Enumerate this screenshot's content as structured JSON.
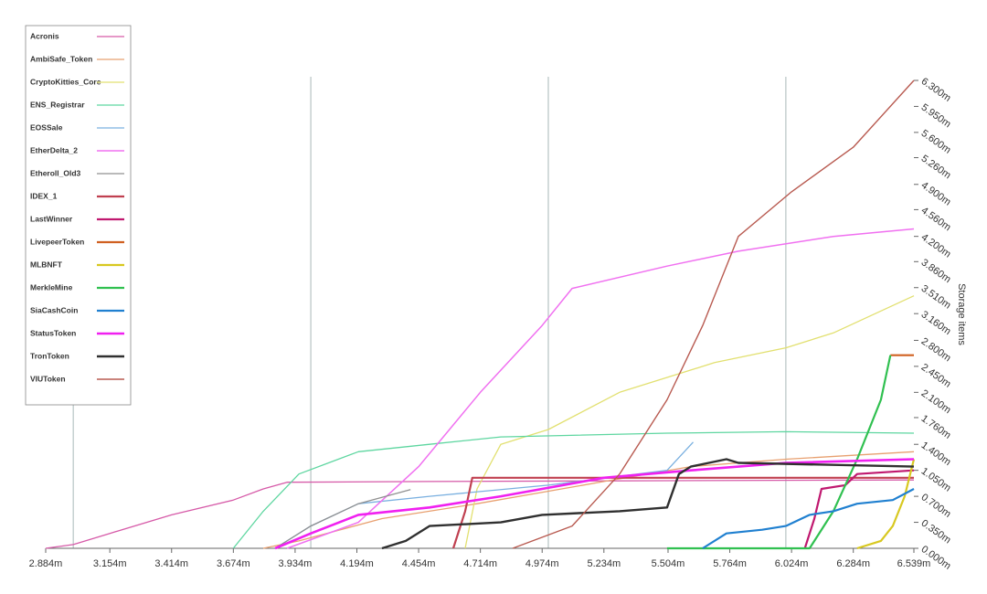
{
  "chart_data": {
    "type": "line",
    "y_axis_label": "Storage items",
    "xlim": [
      2.884,
      6.539
    ],
    "xticks": [
      {
        "value": 2.884,
        "label": "2.884m"
      },
      {
        "value": 3.154,
        "label": "3.154m"
      },
      {
        "value": 3.414,
        "label": "3.414m"
      },
      {
        "value": 3.674,
        "label": "3.674m"
      },
      {
        "value": 3.934,
        "label": "3.934m"
      },
      {
        "value": 4.194,
        "label": "4.194m"
      },
      {
        "value": 4.454,
        "label": "4.454m"
      },
      {
        "value": 4.714,
        "label": "4.714m"
      },
      {
        "value": 4.974,
        "label": "4.974m"
      },
      {
        "value": 5.234,
        "label": "5.234m"
      },
      {
        "value": 5.504,
        "label": "5.504m"
      },
      {
        "value": 5.764,
        "label": "5.764m"
      },
      {
        "value": 6.024,
        "label": "6.024m"
      },
      {
        "value": 6.284,
        "label": "6.284m"
      },
      {
        "value": 6.539,
        "label": "6.539m"
      }
    ],
    "x_gridlines": [
      3,
      4,
      5,
      6
    ],
    "ylim": [
      0,
      6.3
    ],
    "yticks": [
      {
        "value": 0,
        "label": "0.000m"
      },
      {
        "value": 0.35,
        "label": "0.350m"
      },
      {
        "value": 0.7,
        "label": "0.700m"
      },
      {
        "value": 1.05,
        "label": "1.050m"
      },
      {
        "value": 1.4,
        "label": "1.400m"
      },
      {
        "value": 1.76,
        "label": "1.760m"
      },
      {
        "value": 2.1,
        "label": "2.100m"
      },
      {
        "value": 2.45,
        "label": "2.450m"
      },
      {
        "value": 2.8,
        "label": "2.800m"
      },
      {
        "value": 3.16,
        "label": "3.160m"
      },
      {
        "value": 3.51,
        "label": "3.510m"
      },
      {
        "value": 3.86,
        "label": "3.860m"
      },
      {
        "value": 4.2,
        "label": "4.200m"
      },
      {
        "value": 4.56,
        "label": "4.560m"
      },
      {
        "value": 4.9,
        "label": "4.900m"
      },
      {
        "value": 5.26,
        "label": "5.260m"
      },
      {
        "value": 5.6,
        "label": "5.600m"
      },
      {
        "value": 5.95,
        "label": "5.950m"
      },
      {
        "value": 6.3,
        "label": "6.300m"
      }
    ],
    "series": [
      {
        "name": "Acronis",
        "color": "#d65aa8",
        "width": 1.3,
        "x": [
          2.884,
          3.0,
          3.154,
          3.414,
          3.674,
          3.8,
          3.9,
          4.5,
          5.5,
          6.539
        ],
        "values": [
          0,
          0.05,
          0.2,
          0.45,
          0.65,
          0.8,
          0.89,
          0.9,
          0.91,
          0.92
        ]
      },
      {
        "name": "AmbiSafe_Token",
        "color": "#e8a070",
        "width": 1.3,
        "x": [
          3.8,
          3.95,
          4.3,
          4.7,
          5.234,
          5.6,
          6.0,
          6.539
        ],
        "values": [
          0,
          0.1,
          0.4,
          0.6,
          0.9,
          1.1,
          1.2,
          1.3
        ]
      },
      {
        "name": "CryptoKitties_Core",
        "color": "#e2e070",
        "width": 1.3,
        "x": [
          4.65,
          4.7,
          4.8,
          5.0,
          5.3,
          5.7,
          6.0,
          6.2,
          6.539
        ],
        "values": [
          0,
          0.8,
          1.4,
          1.6,
          2.1,
          2.5,
          2.7,
          2.9,
          3.4
        ]
      },
      {
        "name": "ENS_Registrar",
        "color": "#5ed6a0",
        "width": 1.3,
        "x": [
          3.674,
          3.8,
          3.95,
          4.2,
          4.5,
          4.8,
          5.5,
          6.0,
          6.539
        ],
        "values": [
          0,
          0.5,
          1.0,
          1.3,
          1.4,
          1.5,
          1.55,
          1.57,
          1.55
        ]
      },
      {
        "name": "EOSSale",
        "color": "#7ab0e0",
        "width": 1.3,
        "x": [
          3.85,
          4.0,
          4.2,
          4.5,
          5.0,
          5.5,
          5.61
        ],
        "values": [
          0,
          0.3,
          0.6,
          0.7,
          0.85,
          1.05,
          1.43
        ]
      },
      {
        "name": "EtherDelta_2",
        "color": "#f070f0",
        "width": 1.5,
        "x": [
          3.9,
          4.2,
          4.454,
          4.714,
          4.974,
          5.1,
          5.5,
          5.8,
          6.2,
          6.539
        ],
        "values": [
          0,
          0.35,
          1.1,
          2.1,
          3.0,
          3.5,
          3.8,
          4.0,
          4.2,
          4.3
        ]
      },
      {
        "name": "Etheroll_Old3",
        "color": "#909090",
        "width": 1.3,
        "x": [
          3.85,
          4.0,
          4.2,
          4.42
        ],
        "values": [
          0,
          0.3,
          0.6,
          0.79
        ]
      },
      {
        "name": "IDEX_1",
        "color": "#c04050",
        "width": 2.2,
        "x": [
          4.6,
          4.65,
          4.68,
          6.539
        ],
        "values": [
          0,
          0.5,
          0.95,
          0.95
        ]
      },
      {
        "name": "LastWinner",
        "color": "#c0186f",
        "width": 2.2,
        "x": [
          6.08,
          6.12,
          6.15,
          6.25,
          6.3,
          6.539
        ],
        "values": [
          0,
          0.4,
          0.8,
          0.85,
          1.0,
          1.05
        ]
      },
      {
        "name": "LivepeerToken",
        "color": "#d06020",
        "width": 2.2,
        "x": [
          6.44,
          6.539
        ],
        "values": [
          2.6,
          2.6
        ]
      },
      {
        "name": "MLBNFT",
        "color": "#d8c820",
        "width": 2.2,
        "x": [
          6.3,
          6.4,
          6.45,
          6.5,
          6.539
        ],
        "values": [
          0,
          0.1,
          0.3,
          0.7,
          1.2
        ]
      },
      {
        "name": "MerkleMine",
        "color": "#30c050",
        "width": 2.2,
        "x": [
          5.5,
          6.1,
          6.2,
          6.3,
          6.4,
          6.44
        ],
        "values": [
          0,
          0,
          0.5,
          1.2,
          2.0,
          2.6
        ]
      },
      {
        "name": "SiaCashCoin",
        "color": "#2080d0",
        "width": 2.2,
        "x": [
          5.65,
          5.75,
          5.9,
          6.0,
          6.1,
          6.2,
          6.3,
          6.45,
          6.539
        ],
        "values": [
          0,
          0.2,
          0.25,
          0.3,
          0.45,
          0.5,
          0.6,
          0.65,
          0.8
        ]
      },
      {
        "name": "StatusToken",
        "color": "#f020f0",
        "width": 2.6,
        "x": [
          3.85,
          4.0,
          4.2,
          4.5,
          4.8,
          5.234,
          5.6,
          6.0,
          6.539
        ],
        "values": [
          0,
          0.2,
          0.45,
          0.55,
          0.7,
          0.95,
          1.05,
          1.15,
          1.2
        ]
      },
      {
        "name": "TronToken",
        "color": "#303030",
        "width": 2.4,
        "x": [
          4.3,
          4.4,
          4.5,
          4.8,
          4.974,
          5.3,
          5.5,
          5.55,
          5.6,
          5.75,
          5.8,
          6.539
        ],
        "values": [
          0,
          0.1,
          0.3,
          0.35,
          0.45,
          0.5,
          0.55,
          1.0,
          1.1,
          1.2,
          1.15,
          1.1
        ]
      },
      {
        "name": "VIUToken",
        "color": "#b85a50",
        "width": 1.4,
        "x": [
          4.85,
          5.1,
          5.3,
          5.5,
          5.65,
          5.8,
          6.024,
          6.284,
          6.539
        ],
        "values": [
          0,
          0.3,
          1.0,
          2.0,
          3.0,
          4.2,
          4.8,
          5.4,
          6.3
        ]
      }
    ]
  }
}
